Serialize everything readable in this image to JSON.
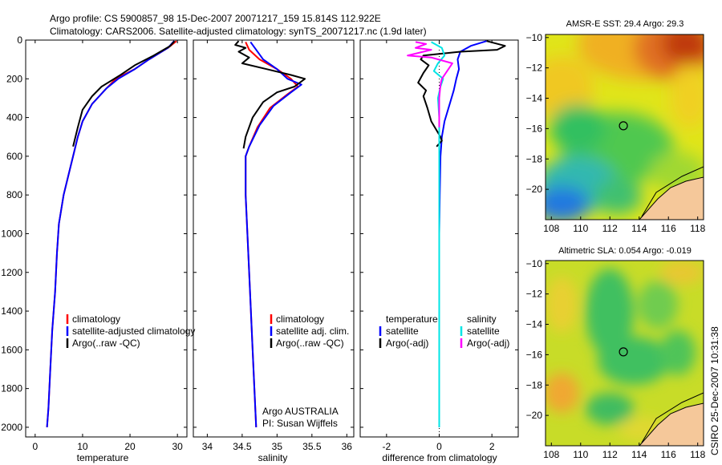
{
  "header": {
    "line1": "Argo profile: CS 5900857_98 15-Dec-2007 20071217_159 15.814S 112.922E",
    "line2": "Climatology: CARS2006. Satellite-adjusted climatology: synTS_20071217.nc (1.9d later)"
  },
  "side_stamp": "CSIRO 25-Dec-2007 10:31:38",
  "colors": {
    "climatology": "#ff0000",
    "satellite": "#0000ff",
    "argo": "#000000",
    "sat_diff_sal": "#00e5e5",
    "argo_diff_sal": "#ff00ff",
    "land": "#f5c89a"
  },
  "chart_data": [
    {
      "type": "line",
      "name": "temperature-profile",
      "xlabel": "temperature",
      "ylabel": "",
      "xlim": [
        -2,
        32
      ],
      "ylim": [
        2050,
        0
      ],
      "xticks": [
        0,
        10,
        20,
        30
      ],
      "yticks": [
        0,
        200,
        400,
        600,
        800,
        1000,
        1200,
        1400,
        1600,
        1800,
        2000
      ],
      "legend": [
        "climatology",
        "satellite-adjusted climatology",
        "Argo(..raw -QC)"
      ],
      "series": [
        {
          "name": "climatology",
          "color": "#ff0000",
          "points": [
            [
              29.8,
              5
            ],
            [
              28,
              40
            ],
            [
              24,
              100
            ],
            [
              21,
              150
            ],
            [
              17,
              200
            ],
            [
              15,
              250
            ],
            [
              12,
              330
            ],
            [
              10,
              420
            ],
            [
              9,
              500
            ],
            [
              8,
              600
            ],
            [
              7,
              700
            ],
            [
              6,
              800
            ],
            [
              5,
              950
            ],
            [
              4.6,
              1100
            ],
            [
              4.2,
              1300
            ],
            [
              3.6,
              1500
            ],
            [
              3.2,
              1700
            ],
            [
              2.8,
              1900
            ],
            [
              2.5,
              2000
            ]
          ]
        },
        {
          "name": "satellite-adjusted climatology",
          "color": "#0000ff",
          "points": [
            [
              29.3,
              5
            ],
            [
              28,
              40
            ],
            [
              24,
              100
            ],
            [
              21,
              150
            ],
            [
              17.5,
              200
            ],
            [
              15,
              250
            ],
            [
              12,
              330
            ],
            [
              10,
              420
            ],
            [
              9,
              500
            ],
            [
              8,
              600
            ],
            [
              7,
              700
            ],
            [
              6,
              800
            ],
            [
              5,
              950
            ],
            [
              4.6,
              1100
            ],
            [
              4.2,
              1300
            ],
            [
              3.6,
              1500
            ],
            [
              3.2,
              1700
            ],
            [
              2.8,
              1900
            ],
            [
              2.5,
              2000
            ]
          ]
        },
        {
          "name": "Argo(..raw -QC)",
          "color": "#000000",
          "points": [
            [
              29.4,
              5
            ],
            [
              28.5,
              30
            ],
            [
              25,
              80
            ],
            [
              21,
              130
            ],
            [
              18,
              180
            ],
            [
              14,
              240
            ],
            [
              12,
              290
            ],
            [
              10,
              360
            ],
            [
              9,
              450
            ],
            [
              8,
              550
            ]
          ]
        }
      ]
    },
    {
      "type": "line",
      "name": "salinity-profile",
      "xlabel": "salinity",
      "xlim": [
        33.8,
        36.1
      ],
      "ylim": [
        2050,
        0
      ],
      "xticks": [
        34,
        34.5,
        35,
        35.5,
        36
      ],
      "legend": [
        "climatology",
        "satellite adj. clim.",
        "Argo(..raw -QC)"
      ],
      "annotation": [
        "Argo AUSTRALIA",
        "PI: Susan Wijffels"
      ],
      "series": [
        {
          "name": "climatology",
          "color": "#ff0000",
          "points": [
            [
              34.55,
              10
            ],
            [
              34.6,
              50
            ],
            [
              34.75,
              100
            ],
            [
              35.0,
              150
            ],
            [
              35.2,
              200
            ],
            [
              35.3,
              240
            ],
            [
              35.15,
              280
            ],
            [
              34.9,
              350
            ],
            [
              34.72,
              450
            ],
            [
              34.6,
              550
            ],
            [
              34.55,
              600
            ],
            [
              34.55,
              800
            ],
            [
              34.6,
              1200
            ],
            [
              34.65,
              1600
            ],
            [
              34.7,
              2000
            ]
          ]
        },
        {
          "name": "satellite adj. clim.",
          "color": "#0000ff",
          "points": [
            [
              34.62,
              10
            ],
            [
              34.7,
              50
            ],
            [
              34.8,
              100
            ],
            [
              35.0,
              150
            ],
            [
              35.15,
              200
            ],
            [
              35.35,
              230
            ],
            [
              35.2,
              270
            ],
            [
              34.95,
              340
            ],
            [
              34.75,
              440
            ],
            [
              34.6,
              550
            ],
            [
              34.55,
              600
            ],
            [
              34.55,
              800
            ],
            [
              34.6,
              1200
            ],
            [
              34.65,
              1600
            ],
            [
              34.7,
              2000
            ]
          ]
        },
        {
          "name": "Argo(..raw -QC)",
          "color": "#000000",
          "points": [
            [
              34.45,
              5
            ],
            [
              34.4,
              25
            ],
            [
              34.55,
              40
            ],
            [
              34.45,
              60
            ],
            [
              34.6,
              90
            ],
            [
              34.5,
              120
            ],
            [
              34.85,
              150
            ],
            [
              35.2,
              180
            ],
            [
              35.4,
              200
            ],
            [
              35.25,
              240
            ],
            [
              35.0,
              270
            ],
            [
              34.8,
              320
            ],
            [
              34.65,
              400
            ],
            [
              34.55,
              500
            ],
            [
              34.52,
              560
            ]
          ]
        }
      ]
    },
    {
      "type": "line",
      "name": "difference-from-climatology",
      "xlabel": "difference from climatology",
      "xlim": [
        -3,
        3
      ],
      "ylim": [
        2050,
        0
      ],
      "xticks": [
        -2,
        0,
        2
      ],
      "legend_left_title": "temperature",
      "legend_right_title": "salinity",
      "legend_left": [
        "satellite",
        "Argo(-adj)"
      ],
      "legend_right": [
        "satellite",
        "Argo(-adj)"
      ],
      "series": [
        {
          "name": "temperature satellite",
          "color": "#0000ff",
          "points": [
            [
              1.8,
              5
            ],
            [
              1.2,
              30
            ],
            [
              0.8,
              60
            ],
            [
              0.7,
              100
            ],
            [
              0.75,
              150
            ],
            [
              0.65,
              200
            ],
            [
              0.55,
              260
            ],
            [
              0.4,
              330
            ],
            [
              0.2,
              420
            ],
            [
              0.1,
              500
            ],
            [
              0.05,
              600
            ],
            [
              0.02,
              800
            ],
            [
              0,
              1000
            ],
            [
              0,
              1400
            ],
            [
              0,
              2000
            ]
          ]
        },
        {
          "name": "temperature Argo(-adj)",
          "color": "#000000",
          "points": [
            [
              1.8,
              5
            ],
            [
              2.5,
              30
            ],
            [
              2.2,
              50
            ],
            [
              0.8,
              60
            ],
            [
              -0.6,
              80
            ],
            [
              -0.7,
              100
            ],
            [
              -0.4,
              130
            ],
            [
              -0.6,
              170
            ],
            [
              -0.8,
              220
            ],
            [
              -0.5,
              260
            ],
            [
              -0.6,
              290
            ],
            [
              -0.45,
              350
            ],
            [
              -0.3,
              420
            ],
            [
              0.05,
              500
            ],
            [
              0.1,
              520
            ],
            [
              -0.1,
              550
            ]
          ]
        },
        {
          "name": "salinity satellite",
          "color": "#00e5e5",
          "points": [
            [
              -0.3,
              10
            ],
            [
              0.1,
              40
            ],
            [
              0.2,
              80
            ],
            [
              -0.05,
              120
            ],
            [
              -0.2,
              160
            ],
            [
              0.15,
              200
            ],
            [
              0.05,
              240
            ],
            [
              -0.05,
              300
            ],
            [
              0,
              400
            ],
            [
              0,
              800
            ],
            [
              0,
              1200
            ],
            [
              0,
              2000
            ]
          ]
        },
        {
          "name": "salinity Argo(-adj)",
          "color": "#ff00ff",
          "points": [
            [
              -0.9,
              10
            ],
            [
              -0.5,
              20
            ],
            [
              -0.9,
              40
            ],
            [
              -0.3,
              50
            ],
            [
              -1.2,
              80
            ],
            [
              -0.3,
              90
            ],
            [
              0.5,
              120
            ],
            [
              0.3,
              160
            ],
            [
              0.1,
              200
            ],
            [
              0.05,
              230
            ],
            [
              0,
              300
            ],
            [
              0,
              450
            ]
          ]
        }
      ]
    },
    {
      "type": "heatmap",
      "name": "amsr-e-sst-map",
      "title": "AMSR-E SST: 29.4  Argo: 29.3",
      "xlim": [
        107.6,
        118.4
      ],
      "ylim": [
        -22,
        -9.8
      ],
      "xticks": [
        108,
        110,
        112,
        114,
        116,
        118
      ],
      "yticks": [
        -10,
        -12,
        -14,
        -16,
        -18,
        -20
      ],
      "marker": [
        112.922,
        -15.814
      ]
    },
    {
      "type": "heatmap",
      "name": "altimetric-sla-map",
      "title": "Altimetric SLA: 0.054  Argo: -0.019",
      "xlim": [
        107.6,
        118.4
      ],
      "ylim": [
        -22,
        -9.8
      ],
      "xticks": [
        108,
        110,
        112,
        114,
        116,
        118
      ],
      "yticks": [
        -10,
        -12,
        -14,
        -16,
        -18,
        -20
      ],
      "marker": [
        112.922,
        -15.814
      ]
    }
  ]
}
